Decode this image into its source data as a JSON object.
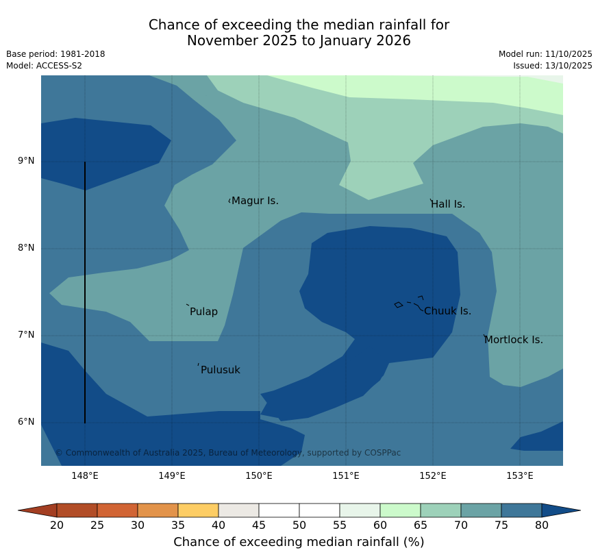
{
  "title": {
    "line1": "Chance of exceeding the median rainfall for",
    "line2": "November 2025 to January 2026"
  },
  "meta": {
    "base_period": "Base period: 1981-2018",
    "model": "Model: ACCESS-S2",
    "model_run": "Model run: 11/10/2025",
    "issued": "Issued: 13/10/2025"
  },
  "map": {
    "lat_ticks": [
      "9°N",
      "8°N",
      "7°N",
      "6°N"
    ],
    "lon_ticks": [
      "148°E",
      "149°E",
      "150°E",
      "151°E",
      "152°E",
      "153°E"
    ],
    "places": [
      {
        "name": "Magur Is."
      },
      {
        "name": "Hall Is."
      },
      {
        "name": "Pulap"
      },
      {
        "name": "Chuuk Is."
      },
      {
        "name": "Mortlock Is."
      },
      {
        "name": "Pulusuk"
      }
    ],
    "credit": "© Commonwealth of Australia 2025, Bureau of Meteorology, supported by COSPPac",
    "colors": {
      "c55_60": "#e8f5ea",
      "c60_65": "#ccfacb",
      "c65_70": "#9dd1b9",
      "c70_75": "#6ba3a5",
      "c75_80": "#3f7799",
      "c80": "#124c88"
    }
  },
  "colorbar": {
    "ticks": [
      "20",
      "25",
      "30",
      "35",
      "40",
      "45",
      "50",
      "55",
      "60",
      "65",
      "70",
      "75",
      "80"
    ],
    "colors": [
      "#a33e22",
      "#b24d27",
      "#d16434",
      "#e2934a",
      "#fdcd64",
      "#ece9e4",
      "#ffffff",
      "#ffffff",
      "#e8f5ea",
      "#ccfacb",
      "#9dd1b9",
      "#6ba3a5",
      "#3f7799",
      "#124c88"
    ],
    "label": "Chance of exceeding median rainfall (%)"
  }
}
